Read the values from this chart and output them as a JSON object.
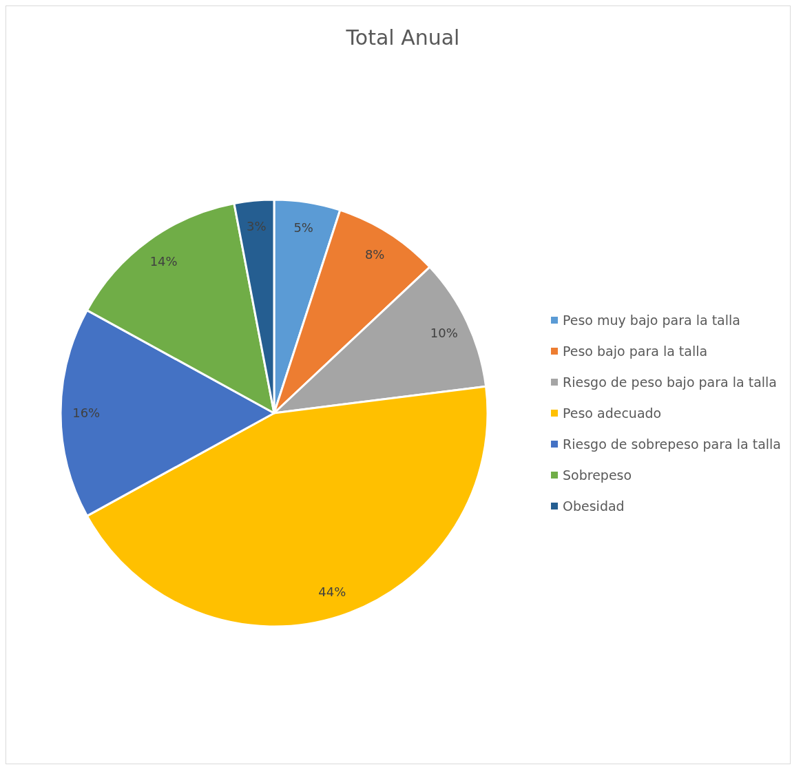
{
  "chart_data": {
    "type": "pie",
    "title": "Total Anual",
    "categories": [
      "Peso muy bajo para la talla",
      "Peso bajo para la talla",
      "Riesgo de peso bajo para la talla",
      "Peso adecuado",
      "Riesgo de sobrepeso para la talla",
      "Sobrepeso",
      "Obesidad"
    ],
    "values": [
      5,
      8,
      10,
      44,
      16,
      14,
      3
    ],
    "colors": [
      "#5b9bd5",
      "#ed7d31",
      "#a5a5a5",
      "#ffc000",
      "#4472c4",
      "#70ad47",
      "#255e91"
    ],
    "value_labels": [
      "5%",
      "8%",
      "10%",
      "44%",
      "16%",
      "14%",
      "3%"
    ],
    "legend": "right"
  }
}
